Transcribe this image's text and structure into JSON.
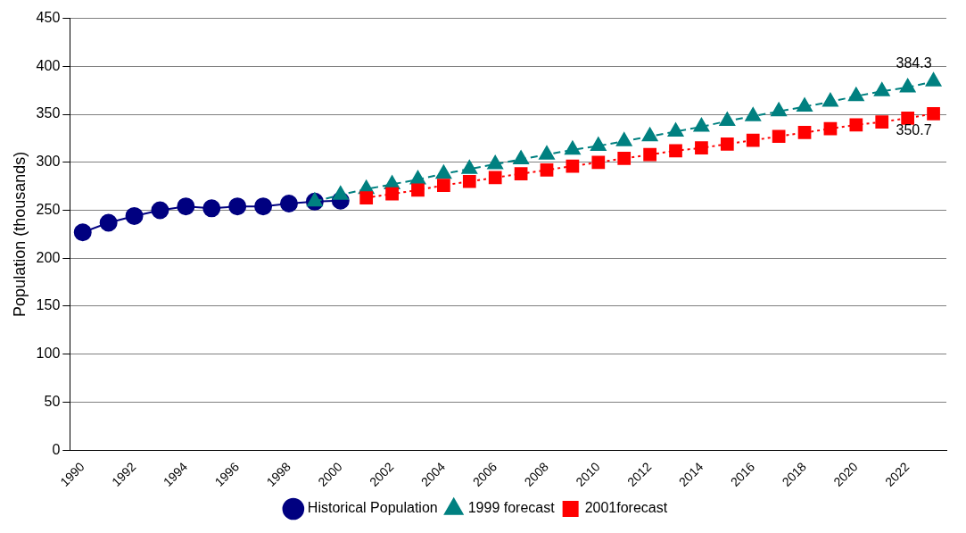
{
  "chart_data": {
    "type": "line",
    "ylabel": "Population (thousands)",
    "categories": [
      "1990",
      null,
      "1992",
      null,
      "1994",
      null,
      "1996",
      null,
      "1998",
      null,
      "2000",
      null,
      "2002",
      null,
      "2004",
      null,
      "2006",
      null,
      "2008",
      null,
      "2010",
      null,
      "2012",
      null,
      "2014",
      null,
      "2016",
      null,
      "2018",
      null,
      "2020",
      null,
      "2022",
      null
    ],
    "ylim": [
      0,
      450
    ],
    "yticks": [
      0,
      50,
      100,
      150,
      200,
      250,
      300,
      350,
      400,
      450
    ],
    "grid": "y",
    "legend": "bottom",
    "series": [
      {
        "name": "Historical Population",
        "color": "#000080",
        "marker": "circle",
        "line_style": "solid",
        "values": [
          227,
          237,
          244,
          250,
          254,
          252,
          254,
          254,
          257,
          259,
          260,
          null,
          null,
          null,
          null,
          null,
          null,
          null,
          null,
          null,
          null,
          null,
          null,
          null,
          null,
          null,
          null,
          null,
          null,
          null,
          null,
          null,
          null,
          null
        ]
      },
      {
        "name": "1999 forecast",
        "color": "#008080",
        "marker": "triangle",
        "line_style": "dashed",
        "values": [
          null,
          null,
          null,
          null,
          null,
          null,
          null,
          null,
          null,
          259,
          266,
          272,
          277,
          282,
          288,
          293,
          298,
          303,
          308,
          313,
          317,
          322,
          327,
          332,
          337,
          343,
          348,
          353,
          358,
          363,
          369,
          374,
          378,
          384.3
        ],
        "value_labels": [
          null,
          null,
          null,
          null,
          null,
          null,
          null,
          null,
          null,
          null,
          null,
          null,
          null,
          null,
          null,
          null,
          null,
          null,
          null,
          null,
          null,
          null,
          null,
          null,
          null,
          null,
          null,
          null,
          null,
          null,
          null,
          null,
          null,
          "384.3"
        ]
      },
      {
        "name": "2001forecast",
        "color": "#ff0000",
        "marker": "square",
        "line_style": "dotted",
        "values": [
          null,
          null,
          null,
          null,
          null,
          null,
          null,
          null,
          null,
          null,
          null,
          263,
          267,
          271,
          276,
          280,
          284,
          288,
          292,
          296,
          300,
          304,
          308,
          312,
          315,
          319,
          323,
          327,
          331,
          335,
          339,
          342,
          346,
          350.7
        ],
        "value_labels": [
          null,
          null,
          null,
          null,
          null,
          null,
          null,
          null,
          null,
          null,
          null,
          null,
          null,
          null,
          null,
          null,
          null,
          null,
          null,
          null,
          null,
          null,
          null,
          null,
          null,
          null,
          null,
          null,
          null,
          null,
          null,
          null,
          null,
          "350.7"
        ]
      }
    ]
  }
}
